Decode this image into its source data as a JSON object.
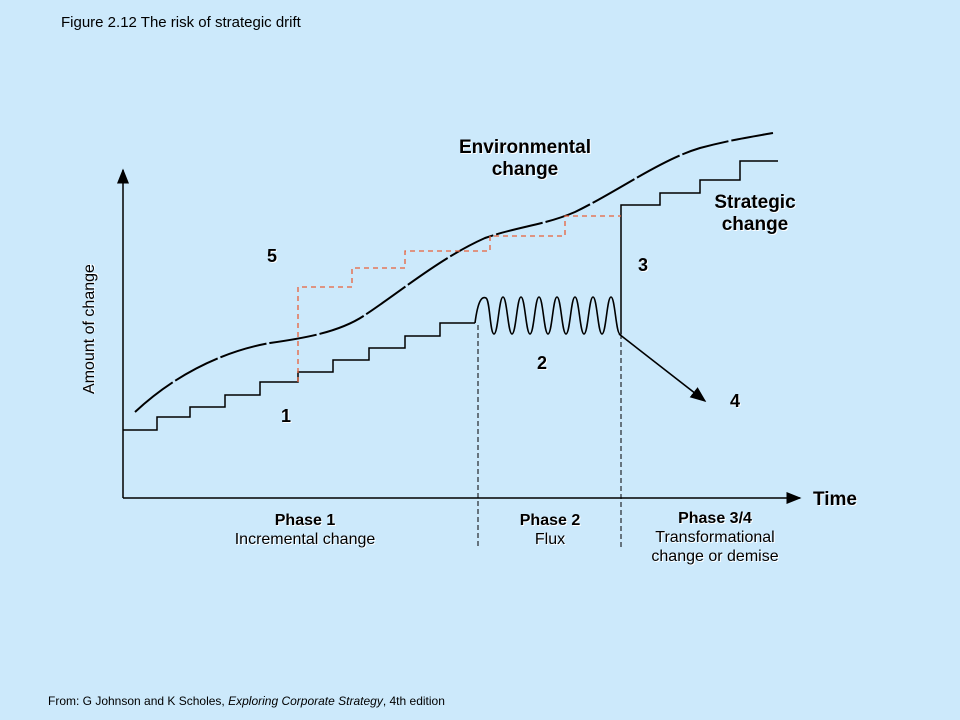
{
  "figure_title": "Figure 2.12 The risk of strategic drift",
  "source": {
    "prefix": "From: G Johnson and K Scholes, ",
    "book": "Exploring Corporate Strategy",
    "suffix": ", 4th edition"
  },
  "axes": {
    "y_label": "Amount of change",
    "x_label": "Time"
  },
  "curves": {
    "environmental_line1": "Environmental",
    "environmental_line2": "change",
    "strategic_line1": "Strategic",
    "strategic_line2": "change"
  },
  "markers": [
    "1",
    "2",
    "3",
    "4",
    "5"
  ],
  "phases": [
    {
      "title": "Phase 1",
      "line1": "Incremental change",
      "line2": ""
    },
    {
      "title": "Phase 2",
      "line1": "Flux",
      "line2": ""
    },
    {
      "title": "Phase 3/4",
      "line1": "Transformational",
      "line2": "change or demise"
    }
  ],
  "colors": {
    "background": "#cce9fb",
    "dashed_path": "#e8613a",
    "lines": "#000000"
  }
}
